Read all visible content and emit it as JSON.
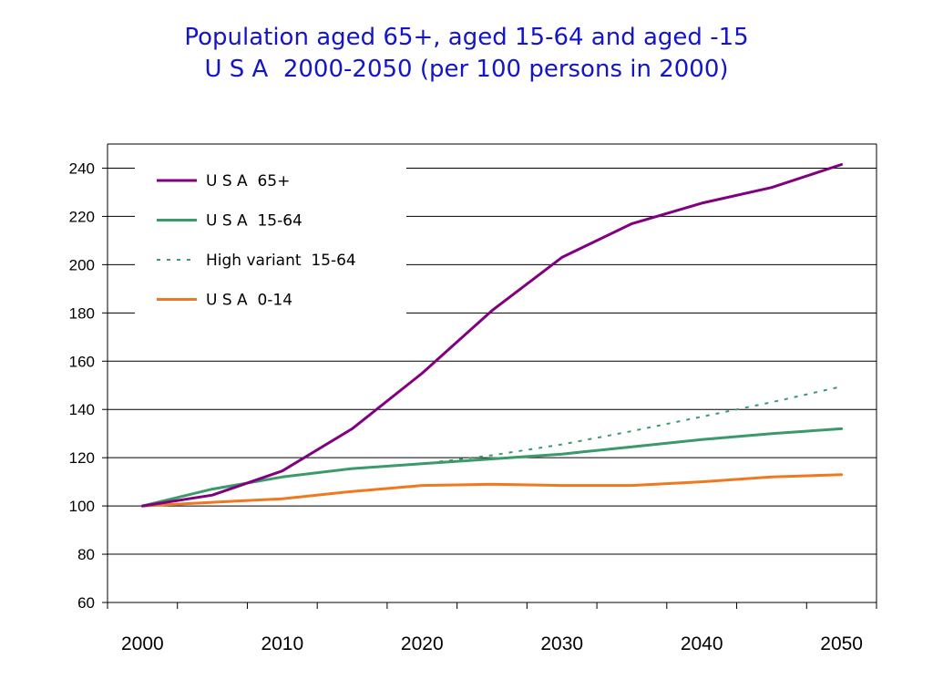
{
  "title_lines": [
    "Population aged 65+, aged 15-64 and aged -15",
    "U S A  2000-2050 (per 100 persons in 2000)"
  ],
  "chart_data": {
    "type": "line",
    "x": [
      2000,
      2005,
      2010,
      2015,
      2020,
      2025,
      2030,
      2035,
      2040,
      2045,
      2050
    ],
    "x_ticks": [
      2000,
      2010,
      2020,
      2030,
      2040,
      2050
    ],
    "xlim": [
      1997.5,
      2052.5
    ],
    "ylim": [
      60,
      250
    ],
    "y_ticks": [
      60,
      80,
      100,
      120,
      140,
      160,
      180,
      200,
      220,
      240
    ],
    "grid": true,
    "legend_position": "top-left",
    "series": [
      {
        "name": "U S A  65+",
        "color": "#800080",
        "style": "solid",
        "values": [
          100,
          104.5,
          114.5,
          132,
          155,
          181,
          203,
          217,
          225.5,
          232,
          241.5
        ]
      },
      {
        "name": "U S A  15-64",
        "color": "#3a9a6a",
        "style": "solid",
        "values": [
          100,
          107,
          112,
          115.5,
          117.5,
          119.5,
          121.5,
          124.5,
          127.5,
          130,
          132
        ]
      },
      {
        "name": "High variant  15-64",
        "color": "#3a9a6a",
        "style": "dotted",
        "values": [
          100,
          107,
          112,
          115.5,
          117.5,
          121,
          125.5,
          131,
          137,
          143,
          149.5
        ]
      },
      {
        "name": "U S A  0-14",
        "color": "#f07820",
        "style": "solid",
        "values": [
          100,
          101.5,
          103,
          106,
          108.5,
          109,
          108.5,
          108.5,
          110,
          112,
          113
        ]
      }
    ]
  }
}
